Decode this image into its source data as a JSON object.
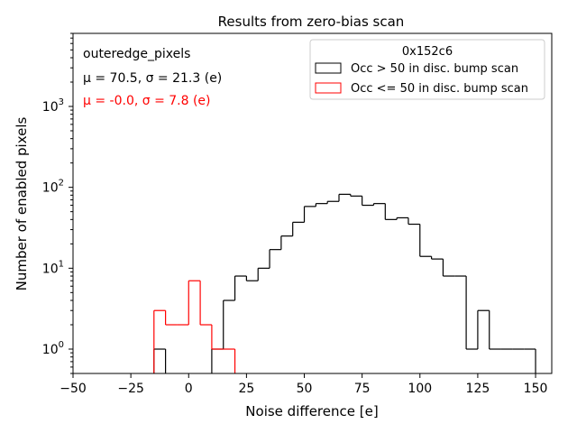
{
  "chart_data": {
    "type": "histogram",
    "title": "Results from zero-bias scan",
    "xlabel": "Noise difference [e]",
    "ylabel": "Number of enabled pixels",
    "xlim": [
      -50,
      157
    ],
    "ylim": [
      0.5,
      8000
    ],
    "yscale": "log",
    "xticks": [
      -50,
      -25,
      0,
      25,
      50,
      75,
      100,
      125,
      150
    ],
    "xtick_labels": [
      "−50",
      "−25",
      "0",
      "25",
      "50",
      "75",
      "100",
      "125",
      "150"
    ],
    "yticks": [
      1,
      10,
      100,
      1000
    ],
    "bin_width": 5,
    "annotations": [
      {
        "text": "outeredge_pixels",
        "color": "#000000"
      },
      {
        "text": "μ = 70.5, σ = 21.3 (e)",
        "color": "#000000"
      },
      {
        "text": "μ = -0.0, σ = 7.8 (e)",
        "color": "#ff0000"
      }
    ],
    "legend": {
      "title": "0x152c6",
      "placement": "top-right"
    },
    "series": [
      {
        "name": "Occ > 50 in disc. bump scan",
        "color": "#000000",
        "bins": [
          [
            -15,
            1
          ],
          [
            -10,
            0
          ],
          [
            -5,
            0
          ],
          [
            0,
            0
          ],
          [
            5,
            0
          ],
          [
            10,
            1
          ],
          [
            15,
            4
          ],
          [
            20,
            8
          ],
          [
            25,
            7
          ],
          [
            30,
            10
          ],
          [
            35,
            17
          ],
          [
            40,
            25
          ],
          [
            45,
            37
          ],
          [
            50,
            58
          ],
          [
            55,
            63
          ],
          [
            60,
            67
          ],
          [
            65,
            82
          ],
          [
            70,
            78
          ],
          [
            75,
            60
          ],
          [
            80,
            63
          ],
          [
            85,
            40
          ],
          [
            90,
            42
          ],
          [
            95,
            35
          ],
          [
            100,
            14
          ],
          [
            105,
            13
          ],
          [
            110,
            8
          ],
          [
            115,
            8
          ],
          [
            120,
            1
          ],
          [
            125,
            3
          ],
          [
            130,
            1
          ],
          [
            135,
            1
          ],
          [
            140,
            1
          ],
          [
            145,
            1
          ]
        ]
      },
      {
        "name": "Occ <= 50 in disc. bump scan",
        "color": "#ff0000",
        "bins": [
          [
            -15,
            3
          ],
          [
            -10,
            2
          ],
          [
            -5,
            2
          ],
          [
            0,
            7
          ],
          [
            5,
            2
          ],
          [
            10,
            1
          ],
          [
            15,
            1
          ]
        ]
      }
    ]
  }
}
